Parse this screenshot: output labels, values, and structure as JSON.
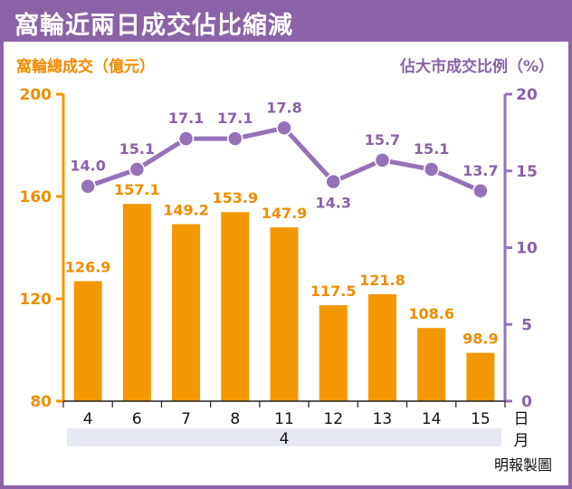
{
  "title": "窩輪近兩日成交佔比縮減",
  "credit": "明報製圖",
  "colors": {
    "frame": "#8a62a8",
    "bar": "#f39800",
    "bar_label": "#f08c00",
    "line": "#9572b8",
    "line_label": "#8a62a8",
    "month_band": "#e6e9f4"
  },
  "chart_data": {
    "type": "bar",
    "categories": [
      "4",
      "6",
      "7",
      "8",
      "11",
      "12",
      "13",
      "14",
      "15"
    ],
    "x_unit": "日",
    "month_label": "4",
    "month_unit": "月",
    "series": [
      {
        "name": "窩輪總成交（億元）",
        "type": "bar",
        "axis": "left",
        "values": [
          126.9,
          157.1,
          149.2,
          153.9,
          147.9,
          117.5,
          121.8,
          108.6,
          98.9
        ]
      },
      {
        "name": "佔大市成交比例（%）",
        "type": "line",
        "axis": "right",
        "values": [
          14.0,
          15.1,
          17.1,
          17.1,
          17.8,
          14.3,
          15.7,
          15.1,
          13.7
        ]
      }
    ],
    "left_axis": {
      "label": "窩輪總成交（億元）",
      "range": [
        80,
        200
      ],
      "ticks": [
        "80",
        "120",
        "160",
        "200"
      ],
      "tick_values": [
        80,
        120,
        160,
        200
      ]
    },
    "right_axis": {
      "label": "佔大市成交比例（%）",
      "range": [
        0,
        20
      ],
      "ticks": [
        "0",
        "5",
        "10",
        "15",
        "20"
      ],
      "tick_values": [
        0,
        5,
        10,
        15,
        20
      ]
    },
    "bar_labels": [
      "126.9",
      "157.1",
      "149.2",
      "153.9",
      "147.9",
      "117.5",
      "121.8",
      "108.6",
      "98.9"
    ],
    "line_labels": [
      "14.0",
      "15.1",
      "17.1",
      "17.1",
      "17.8",
      "14.3",
      "15.7",
      "15.1",
      "13.7"
    ],
    "grid": false,
    "legend": "none"
  }
}
